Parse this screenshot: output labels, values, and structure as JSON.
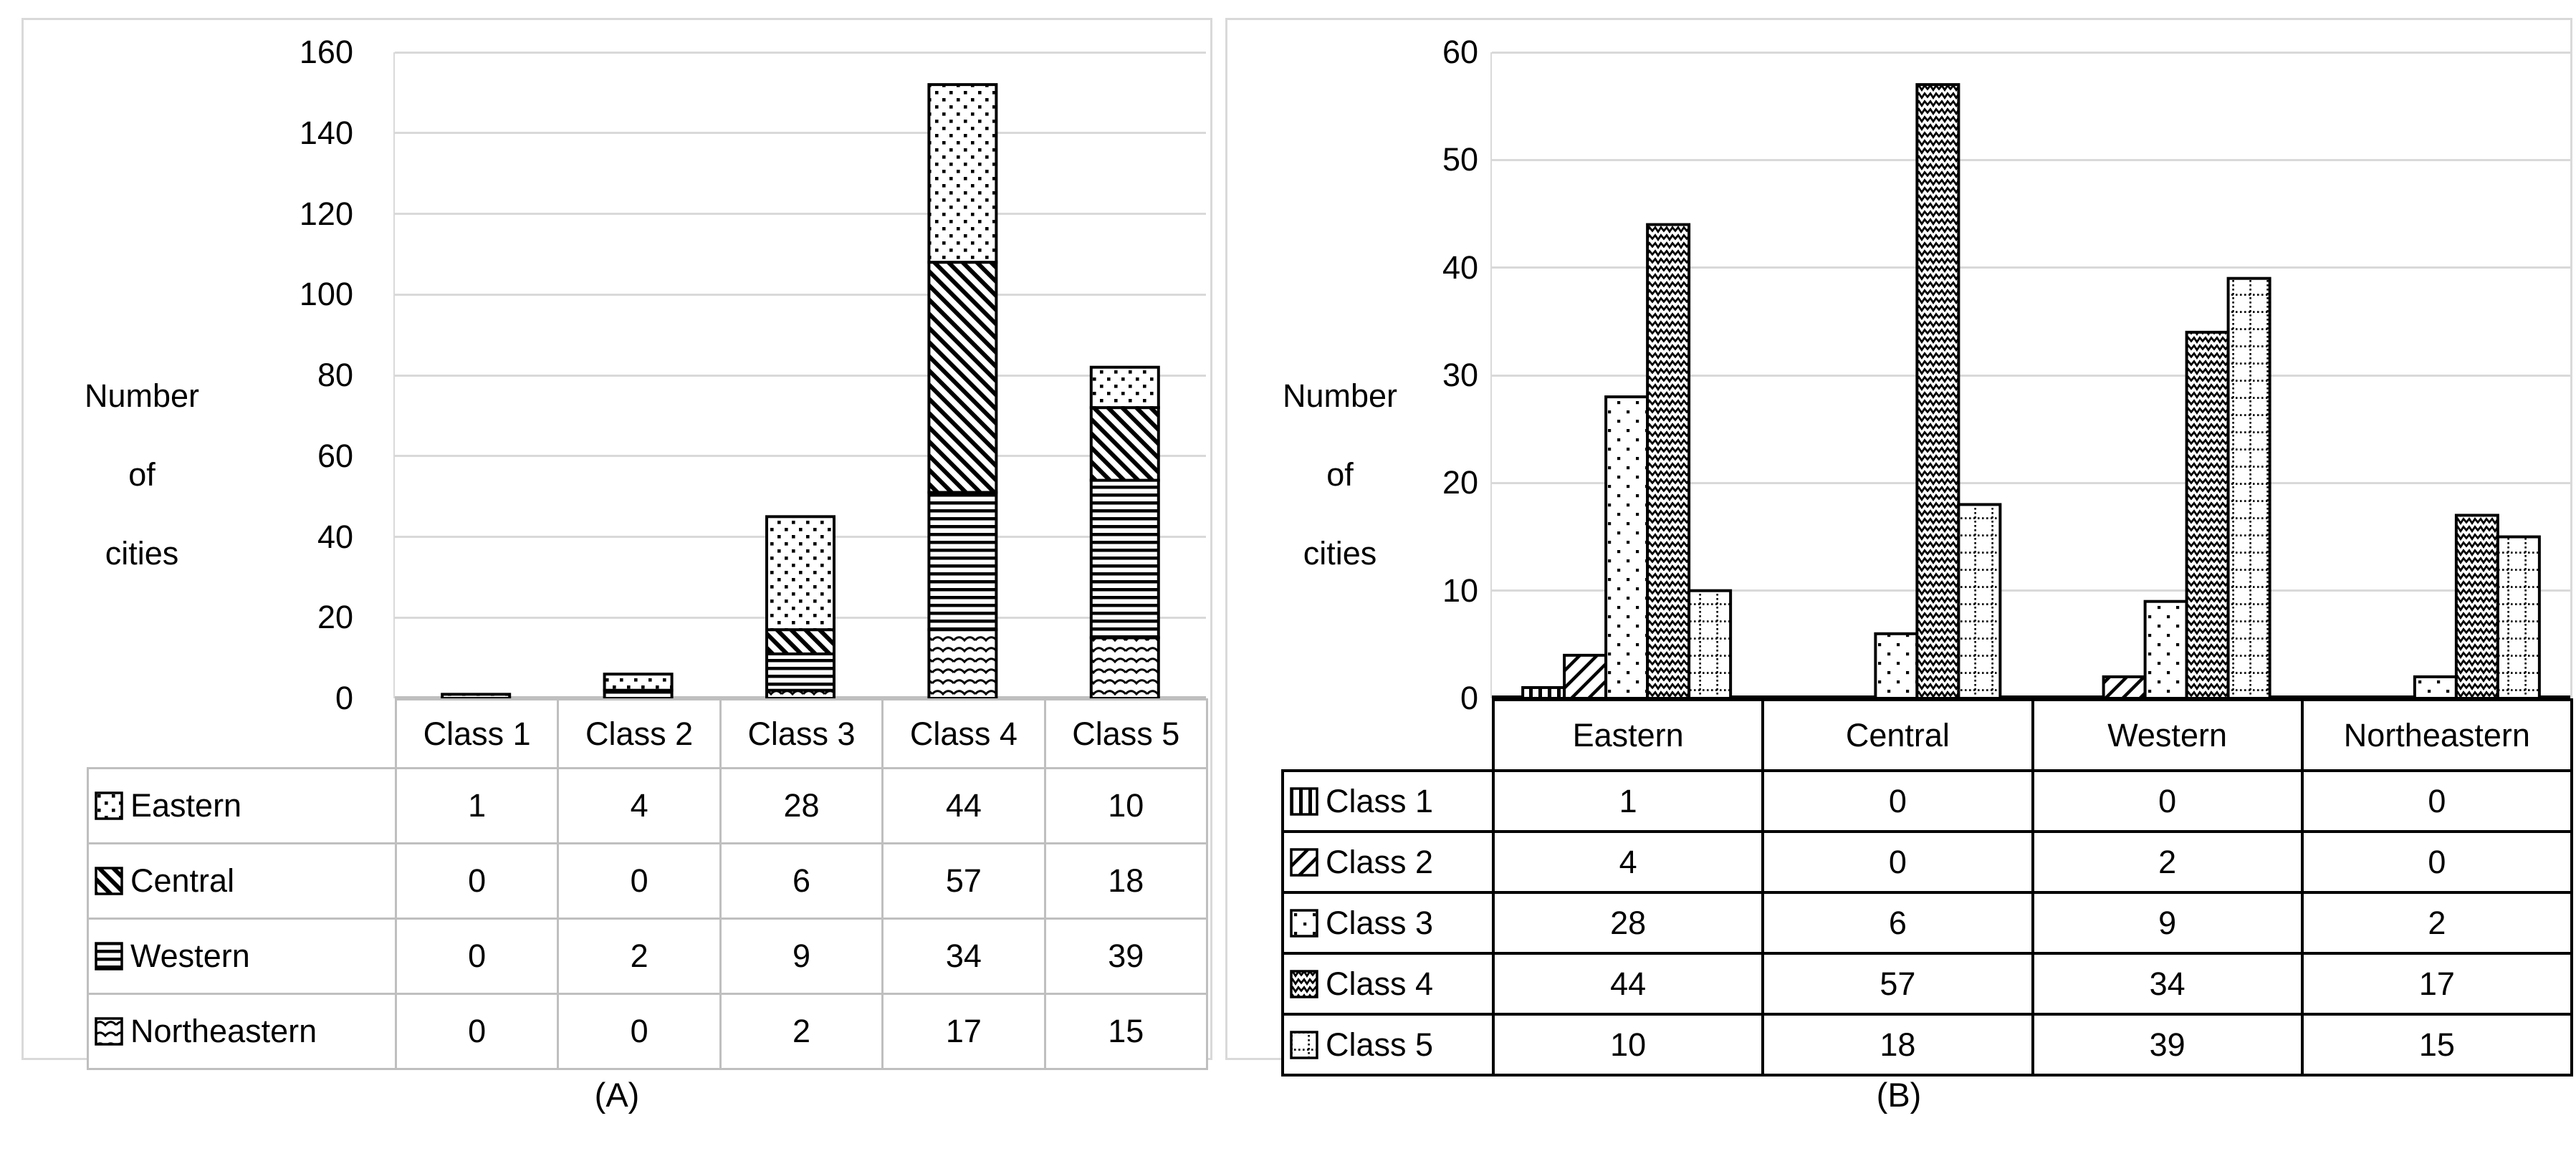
{
  "figure": {
    "background": "#ffffff",
    "colors": {
      "gridline": "#d9d9d9",
      "axis_band_a": "#bfbfbf",
      "axis_band_b": "#000000",
      "panel_border": "#d9d9d9",
      "table_border_a": "#bfbfbf",
      "table_border_b": "#000000",
      "bar_outline": "#000000",
      "text": "#000000"
    }
  },
  "panels": [
    {
      "id": "A",
      "caption": "(A)"
    },
    {
      "id": "B",
      "caption": "(B)"
    }
  ],
  "chart_data": [
    {
      "type": "bar",
      "subtype": "stacked",
      "title": "",
      "xlabel": "",
      "ylabel": "Number of cities",
      "ylabel_lines": [
        "Number",
        "of",
        "cities"
      ],
      "ylim": [
        0,
        160
      ],
      "ytick_step": 20,
      "y_ticks": [
        "160",
        "140",
        "120",
        "100",
        "80",
        "60",
        "40",
        "20",
        "0"
      ],
      "grid": true,
      "legend_position": "data-table-left-column",
      "stack_order_bottom_to_top": [
        "Northeastern",
        "Western",
        "Central",
        "Eastern"
      ],
      "categories": [
        "Class 1",
        "Class 2",
        "Class 3",
        "Class 4",
        "Class 5"
      ],
      "series": [
        {
          "name": "Eastern",
          "icon": "dots-swatch-icon",
          "pattern": "dots",
          "values": [
            1,
            4,
            28,
            44,
            10
          ]
        },
        {
          "name": "Central",
          "icon": "diagonal-stripes-swatch-icon",
          "pattern": "diag-back",
          "values": [
            0,
            0,
            6,
            57,
            18
          ]
        },
        {
          "name": "Western",
          "icon": "horizontal-lines-swatch-icon",
          "pattern": "hlines",
          "values": [
            0,
            2,
            9,
            34,
            39
          ]
        },
        {
          "name": "Northeastern",
          "icon": "wave-swatch-icon",
          "pattern": "wave",
          "values": [
            0,
            0,
            2,
            17,
            15
          ]
        }
      ]
    },
    {
      "type": "bar",
      "subtype": "grouped",
      "title": "",
      "xlabel": "",
      "ylabel": "Number of cities",
      "ylabel_lines": [
        "Number",
        "of",
        "cities"
      ],
      "ylim": [
        0,
        60
      ],
      "ytick_step": 10,
      "y_ticks": [
        "60",
        "50",
        "40",
        "30",
        "20",
        "10",
        "0"
      ],
      "grid": true,
      "legend_position": "data-table-left-column",
      "categories": [
        "Eastern",
        "Central",
        "Western",
        "Northeastern"
      ],
      "series": [
        {
          "name": "Class 1",
          "icon": "vertical-lines-swatch-icon",
          "pattern": "vlines",
          "values": [
            1,
            0,
            0,
            0
          ]
        },
        {
          "name": "Class 2",
          "icon": "forward-diagonal-swatch-icon",
          "pattern": "diag-fwd",
          "values": [
            4,
            0,
            2,
            0
          ]
        },
        {
          "name": "Class 3",
          "icon": "sparse-dots-swatch-icon",
          "pattern": "dots-sparse",
          "values": [
            28,
            6,
            9,
            2
          ]
        },
        {
          "name": "Class 4",
          "icon": "zigzag-swatch-icon",
          "pattern": "zigzag",
          "values": [
            44,
            57,
            34,
            17
          ]
        },
        {
          "name": "Class 5",
          "icon": "dotted-grid-swatch-icon",
          "pattern": "grid-dots",
          "values": [
            10,
            18,
            39,
            15
          ]
        }
      ]
    }
  ]
}
